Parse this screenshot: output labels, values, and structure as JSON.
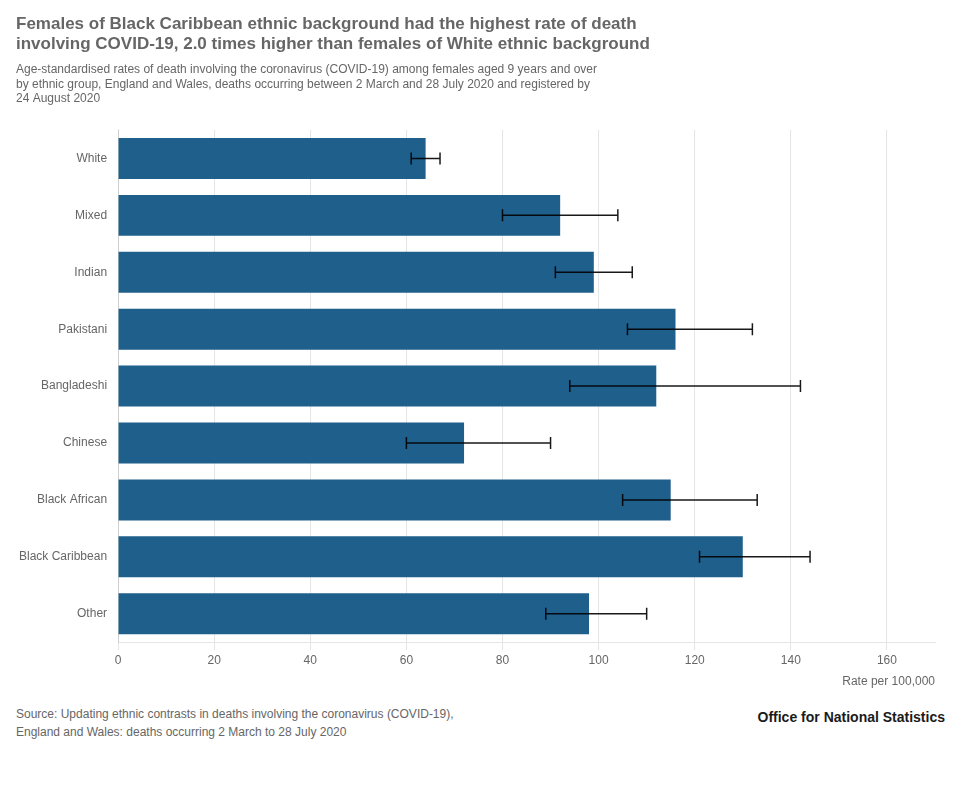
{
  "chart_data": {
    "type": "bar",
    "orientation": "horizontal",
    "title": "Females of Black Caribbean ethnic background had the highest rate of death\ninvolving COVID-19, 2.0 times higher than females of White ethnic background",
    "subtitle": "Age-standardised rates of death involving the coronavirus (COVID-19) among females aged 9 years and over\nby ethnic group, England and Wales, deaths occurring between 2 March and 28 July 2020 and registered by\n24 August 2020",
    "categories": [
      "White",
      "Mixed",
      "Indian",
      "Pakistani",
      "Bangladeshi",
      "Chinese",
      "Black African",
      "Black Caribbean",
      "Other"
    ],
    "values": [
      64,
      92,
      99,
      116,
      112,
      72,
      115,
      130,
      98
    ],
    "err_low": [
      3,
      12,
      8,
      10,
      18,
      12,
      10,
      9,
      9
    ],
    "err_high": [
      3,
      12,
      8,
      16,
      30,
      18,
      18,
      14,
      12
    ],
    "color": "#1F5F8B",
    "xlabel": "Rate per 100,000",
    "xlim": [
      0,
      170
    ],
    "xticks": [
      0,
      20,
      40,
      60,
      80,
      100,
      120,
      140,
      160
    ],
    "grid": true,
    "source": "Source: Updating ethnic contrasts in deaths involving the coronavirus (COVID-19),\nEngland and Wales: deaths occurring 2 March to 28 July 2020",
    "annotations": [
      "Office for National Statistics"
    ]
  }
}
